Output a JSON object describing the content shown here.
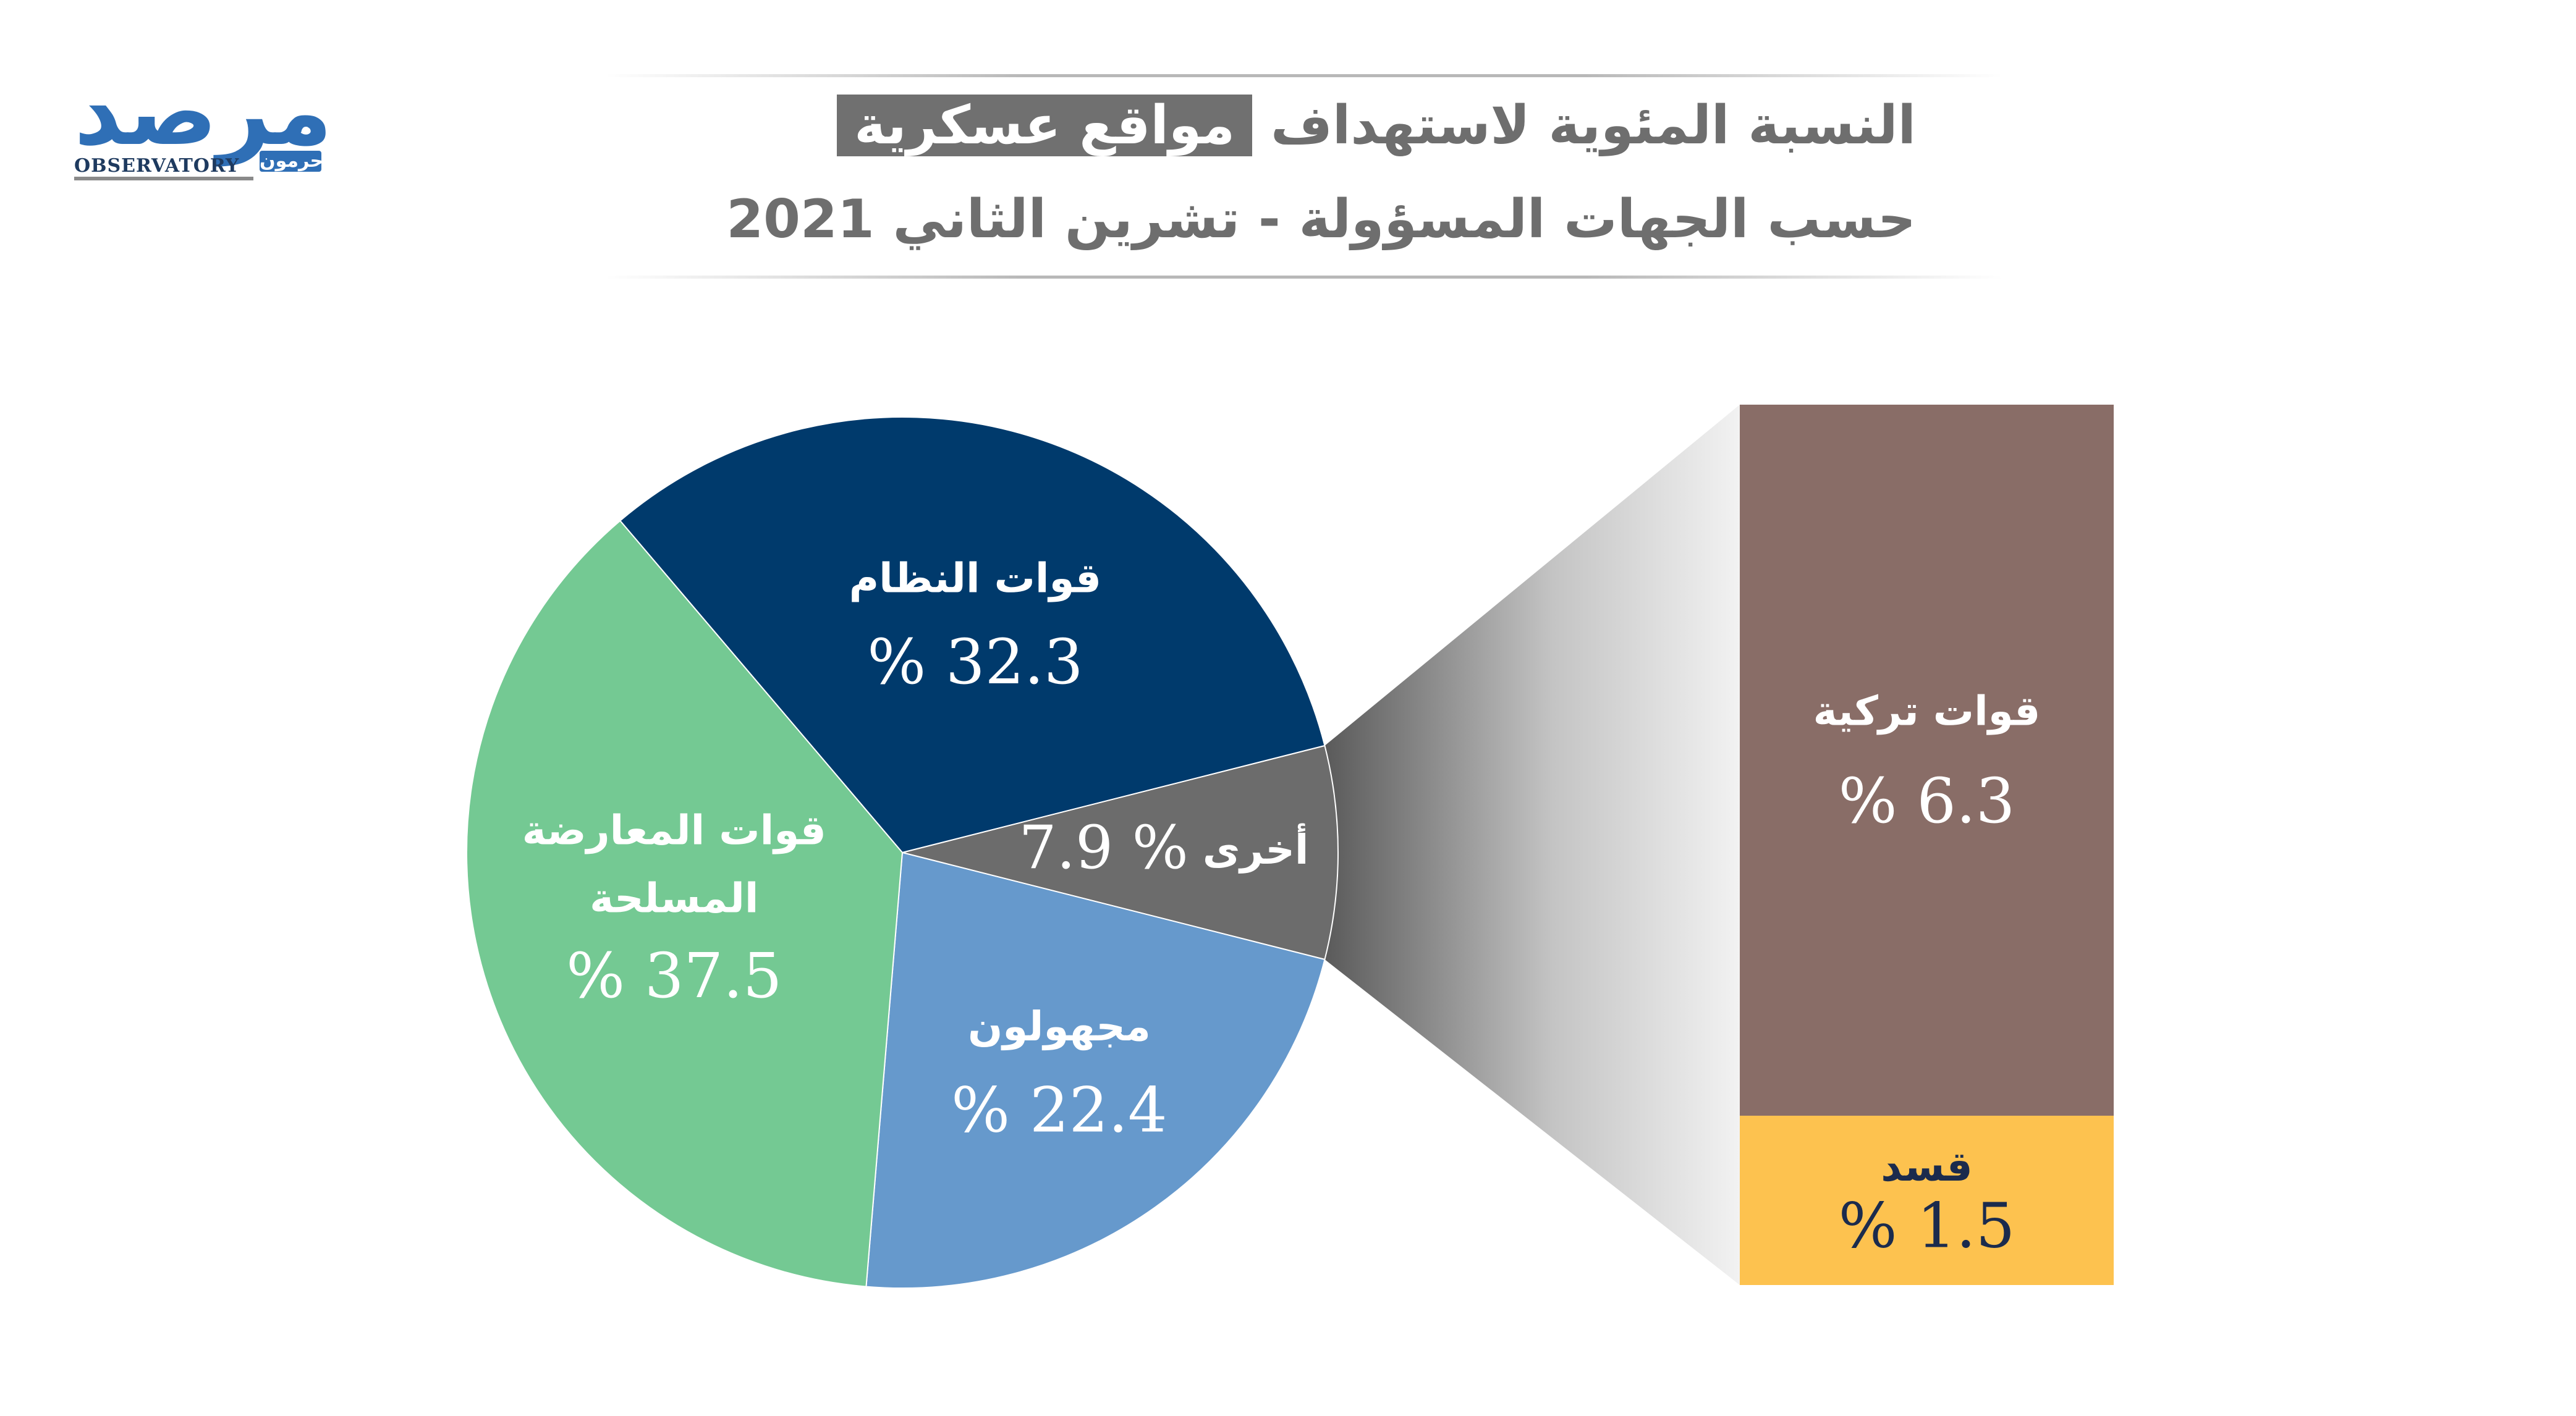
{
  "logo": {
    "arabic": "مرصد",
    "english": "OBSERVATORY",
    "arabic_small": "حرمون"
  },
  "title": {
    "line1_before": "النسبة المئوية لاستهداف",
    "line1_highlight": "مواقع عسكرية",
    "line2": "حسب الجهات المسؤولة - تشرين الثاني 2021"
  },
  "chart_data": {
    "type": "pie",
    "unit": "%",
    "slices": [
      {
        "name": "قوات النظام",
        "value": 32.3,
        "label": "% 32.3",
        "color": "#003a6c"
      },
      {
        "name": "أخرى",
        "value": 7.9,
        "label": "% 7.9",
        "color": "#6c6c6c"
      },
      {
        "name": "مجهولون",
        "value": 22.4,
        "label": "% 22.4",
        "color": "#6699cc"
      },
      {
        "name": "قوات المعارضة المسلحة",
        "value": 37.5,
        "label": "% 37.5",
        "color": "#74c993"
      }
    ],
    "breakdown": {
      "of": "أخرى",
      "type": "stacked-bar",
      "segments": [
        {
          "name": "قوات تركية",
          "value": 6.3,
          "label": "% 6.3",
          "color": "#896d67"
        },
        {
          "name": "قسد",
          "value": 1.5,
          "label": "% 1.5",
          "color": "#fdc24f"
        }
      ]
    }
  }
}
